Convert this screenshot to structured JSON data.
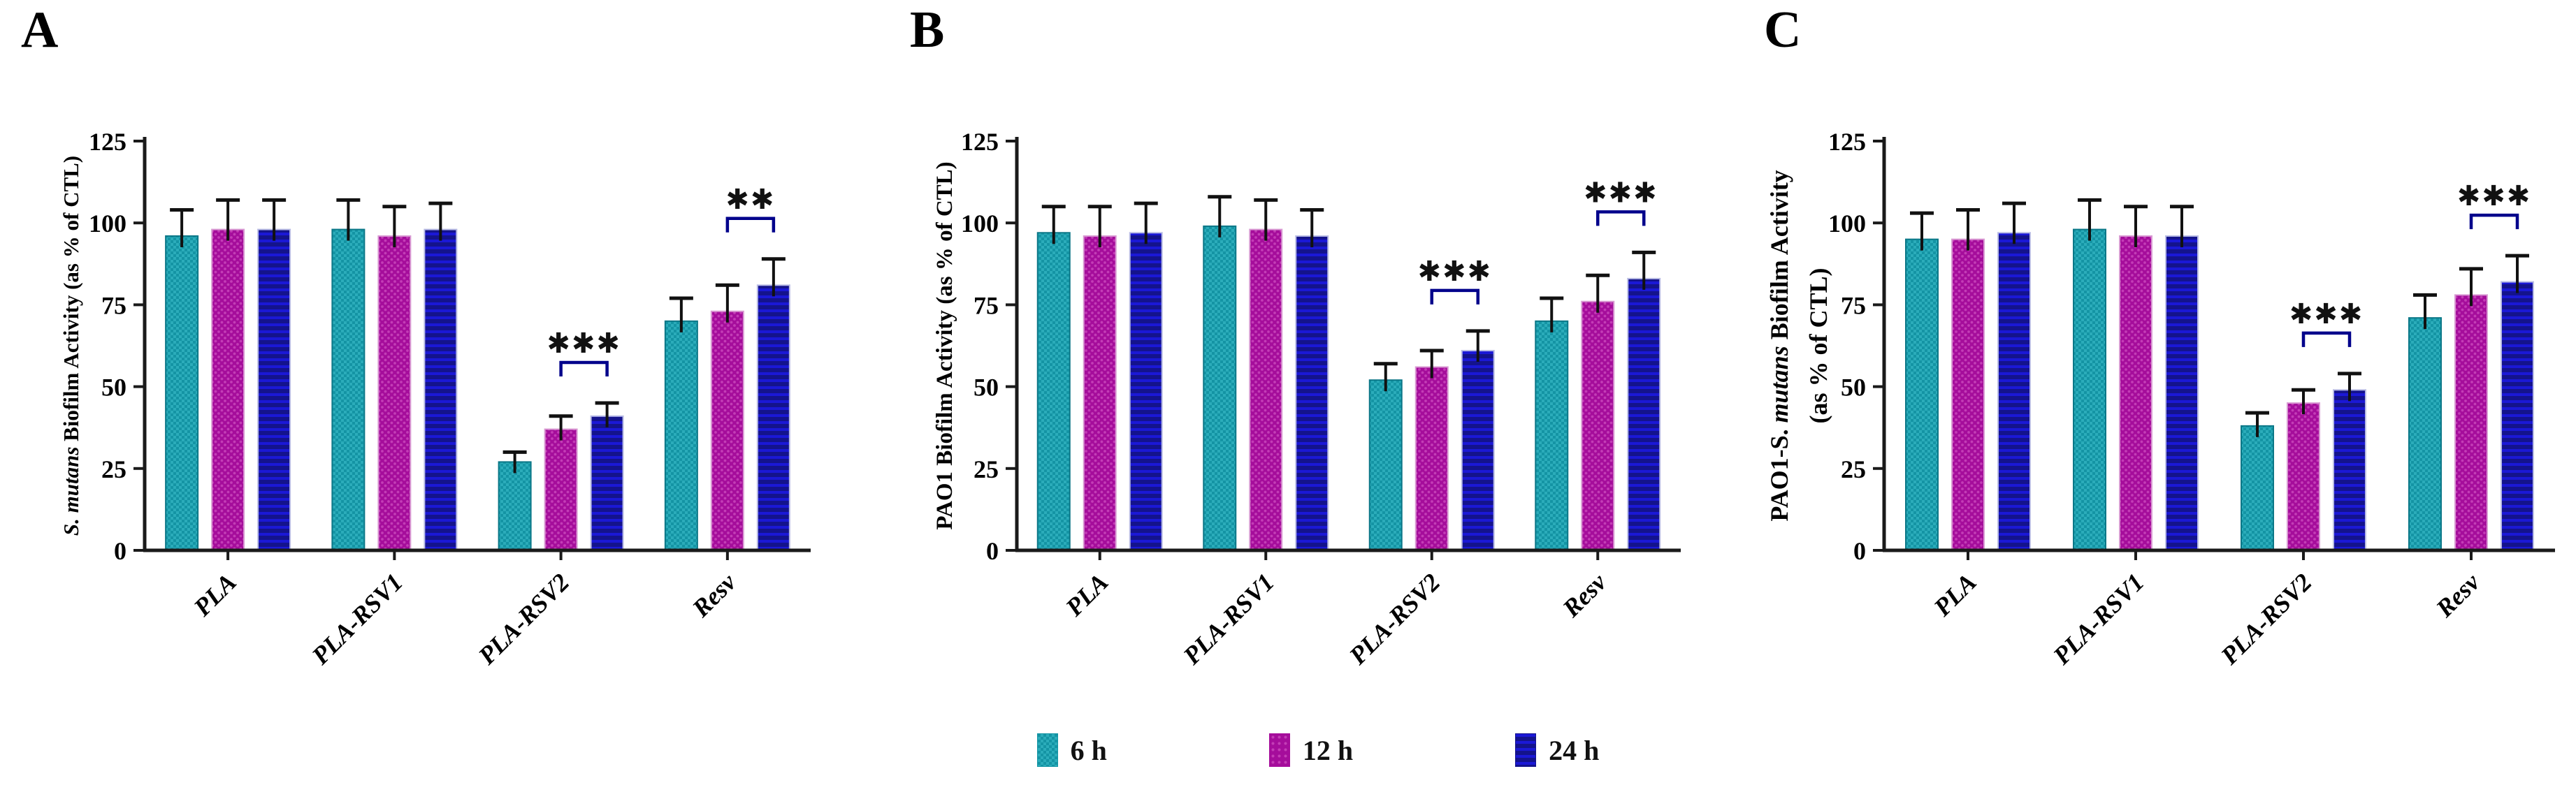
{
  "figure": {
    "panels": [
      {
        "letter": "A"
      },
      {
        "letter": "B"
      },
      {
        "letter": "C"
      }
    ]
  },
  "colors": {
    "axis": "#1a1a1a",
    "error_bar": "#111111",
    "significance_bracket": "#00008B",
    "significance_text": "#111111",
    "teal_base": "#1494A4",
    "teal_light": "#2BACBA",
    "teal_edge": "#0B7787",
    "magenta_base": "#A50D9B",
    "magenta_light": "#C33DB6",
    "magenta_edge": "#D99BD3",
    "navy_base": "#14138C",
    "navy_light": "#1B18D6",
    "navy_edge": "#B9BCE4"
  },
  "legend": {
    "items": [
      {
        "label": "6 h",
        "pattern": "checker",
        "base": "#1494A4",
        "light": "#2BACBA",
        "edge": "#0B7787"
      },
      {
        "label": "12 h",
        "pattern": "dots",
        "base": "#A50D9B",
        "light": "#C33DB6",
        "edge": "#D99BD3"
      },
      {
        "label": "24 h",
        "pattern": "hstripes",
        "base": "#14138C",
        "light": "#1B18D6",
        "edge": "#B9BCE4"
      }
    ]
  },
  "chart_data": [
    {
      "type": "bar",
      "title": "",
      "ylabel": "S. mutans Biofilm Activity (as % of CTL)",
      "ylabel_lines": [
        [
          {
            "text": "S. mutans",
            "italic": true
          },
          {
            "text": " Biofilm Activity (as % of CTL)",
            "italic": false
          }
        ]
      ],
      "xlabel": "",
      "ylim": [
        0,
        125
      ],
      "yticks": [
        0,
        25,
        50,
        75,
        100,
        125
      ],
      "grid": false,
      "legend_position": "bottom",
      "categories": [
        "PLA",
        "PLA-RSV1",
        "PLA-RSV2",
        "Resv"
      ],
      "series": [
        {
          "name": "6 h",
          "values": [
            96,
            98,
            27,
            70
          ],
          "errors": [
            8,
            9,
            3,
            7
          ]
        },
        {
          "name": "12 h",
          "values": [
            98,
            96,
            37,
            73
          ],
          "errors": [
            9,
            9,
            4,
            8
          ]
        },
        {
          "name": "24 h",
          "values": [
            98,
            98,
            41,
            81
          ],
          "errors": [
            9,
            8,
            4,
            8
          ]
        }
      ],
      "significance": [
        {
          "category": "PLA-RSV2",
          "between": [
            "12 h",
            "24 h"
          ],
          "label": "***"
        },
        {
          "category": "Resv",
          "between": [
            "12 h",
            "24 h"
          ],
          "label": "**"
        }
      ]
    },
    {
      "type": "bar",
      "title": "",
      "ylabel": "PAO1 Biofilm Activity (as % of CTL)",
      "ylabel_lines": [
        [
          {
            "text": "PAO1 Biofilm Activity (as % of CTL)",
            "italic": false
          }
        ]
      ],
      "xlabel": "",
      "ylim": [
        0,
        125
      ],
      "yticks": [
        0,
        25,
        50,
        75,
        100,
        125
      ],
      "grid": false,
      "legend_position": "bottom",
      "categories": [
        "PLA",
        "PLA-RSV1",
        "PLA-RSV2",
        "Resv"
      ],
      "series": [
        {
          "name": "6 h",
          "values": [
            97,
            99,
            52,
            70
          ],
          "errors": [
            8,
            9,
            5,
            7
          ]
        },
        {
          "name": "12 h",
          "values": [
            96,
            98,
            56,
            76
          ],
          "errors": [
            9,
            9,
            5,
            8
          ]
        },
        {
          "name": "24 h",
          "values": [
            97,
            96,
            61,
            83
          ],
          "errors": [
            9,
            8,
            6,
            8
          ]
        }
      ],
      "significance": [
        {
          "category": "PLA-RSV2",
          "between": [
            "12 h",
            "24 h"
          ],
          "label": "***"
        },
        {
          "category": "Resv",
          "between": [
            "12 h",
            "24 h"
          ],
          "label": "***"
        }
      ]
    },
    {
      "type": "bar",
      "title": "",
      "ylabel": "PAO1-S. mutans Biofilm Activity (as % of CTL)",
      "ylabel_lines": [
        [
          {
            "text": "PAO1-S. ",
            "italic": false
          },
          {
            "text": "mutans",
            "italic": true
          },
          {
            "text": " Biofilm Activity",
            "italic": false
          }
        ],
        [
          {
            "text": "(as % of CTL)",
            "italic": false
          }
        ]
      ],
      "xlabel": "",
      "ylim": [
        0,
        125
      ],
      "yticks": [
        0,
        25,
        50,
        75,
        100,
        125
      ],
      "grid": false,
      "legend_position": "bottom",
      "categories": [
        "PLA",
        "PLA-RSV1",
        "PLA-RSV2",
        "Resv"
      ],
      "series": [
        {
          "name": "6 h",
          "values": [
            95,
            98,
            38,
            71
          ],
          "errors": [
            8,
            9,
            4,
            7
          ]
        },
        {
          "name": "12 h",
          "values": [
            95,
            96,
            45,
            78
          ],
          "errors": [
            9,
            9,
            4,
            8
          ]
        },
        {
          "name": "24 h",
          "values": [
            97,
            96,
            49,
            82
          ],
          "errors": [
            9,
            9,
            5,
            8
          ]
        }
      ],
      "significance": [
        {
          "category": "PLA-RSV2",
          "between": [
            "12 h",
            "24 h"
          ],
          "label": "***"
        },
        {
          "category": "Resv",
          "between": [
            "12 h",
            "24 h"
          ],
          "label": "***"
        }
      ]
    }
  ]
}
